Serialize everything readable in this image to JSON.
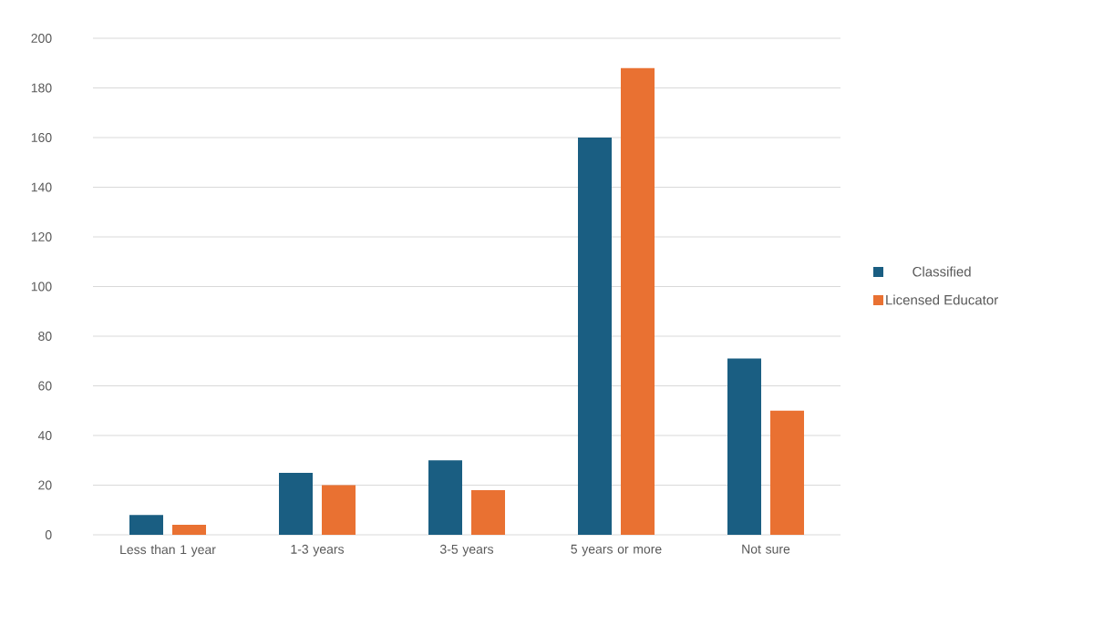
{
  "chart_data": {
    "type": "bar",
    "categories": [
      "Less than 1 year",
      "1-3 years",
      "3-5 years",
      "5 years or more",
      "Not sure"
    ],
    "series": [
      {
        "name": "Classified",
        "color": "#1a5e82",
        "values": [
          8,
          25,
          30,
          160,
          71
        ]
      },
      {
        "name": "Licensed Educator",
        "color": "#e97132",
        "values": [
          4,
          20,
          18,
          188,
          50
        ]
      }
    ],
    "ylim": [
      0,
      200
    ],
    "yticks": [
      0,
      20,
      40,
      60,
      80,
      100,
      120,
      140,
      160,
      180,
      200
    ],
    "grid": "y",
    "legend": "right"
  }
}
